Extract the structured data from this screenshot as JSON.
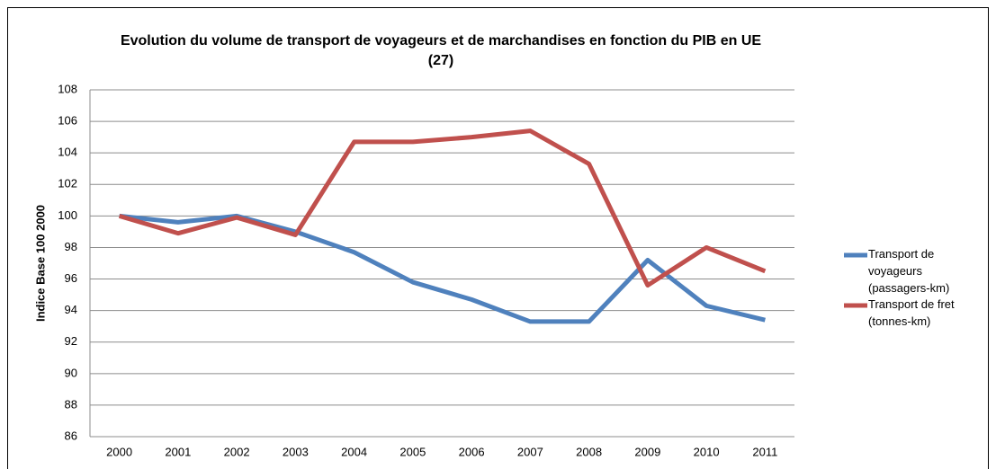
{
  "chart_data": {
    "type": "line",
    "title": "Evolution du volume de transport de voyageurs et de marchandises en fonction du PIB en UE (27)",
    "ylabel": "Indice Base 100 2000",
    "categories": [
      "2000",
      "2001",
      "2002",
      "2003",
      "2004",
      "2005",
      "2006",
      "2007",
      "2008",
      "2009",
      "2010",
      "2011"
    ],
    "series": [
      {
        "name": "Transport de voyageurs (passagers-km)",
        "color": "#4f81bd",
        "values": [
          100,
          99.6,
          100,
          99,
          97.7,
          95.8,
          94.7,
          93.3,
          93.3,
          97.2,
          94.3,
          93.4
        ]
      },
      {
        "name": "Transport de fret (tonnes-km)",
        "color": "#c0504d",
        "values": [
          100,
          98.9,
          99.9,
          98.8,
          104.7,
          104.7,
          105,
          105.4,
          103.3,
          95.6,
          98,
          96.5
        ]
      }
    ],
    "ylim": [
      86,
      108
    ],
    "yticks": [
      86,
      88,
      90,
      92,
      94,
      96,
      98,
      100,
      102,
      104,
      106,
      108
    ],
    "grid": true,
    "legend": "right"
  }
}
